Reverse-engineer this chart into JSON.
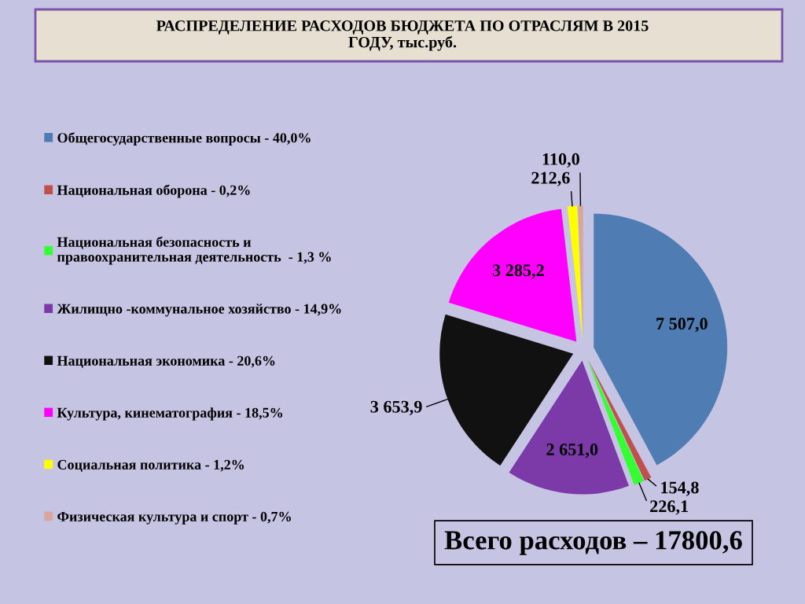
{
  "chart_data": {
    "type": "pie",
    "title": "РАСПРЕДЕЛЕНИЕ РАСХОДОВ БЮДЖЕТА ПО ОТРАСЛЯМ В 2015\nГОДУ, тыс.руб.",
    "categories": [
      "Общегосударственные вопросы - 40,0%",
      "Национальная оборона - 0,2%",
      "Национальная безопасность и\nправоохранительная деятельность  - 1,3 %",
      "Жилищно -коммунальное хозяйство - 14,9%",
      "Национальная экономика - 20,6%",
      "Культура, кинематография - 18,5%",
      "Социальная политика - 1,2%",
      "Физическая культура и спорт - 0,7%"
    ],
    "values": [
      7507.0,
      154.8,
      226.1,
      2651.0,
      3653.9,
      3285.2,
      212.6,
      110.0
    ],
    "colors": [
      "#4f7db3",
      "#c0504d",
      "#33ff33",
      "#7b3aa8",
      "#111111",
      "#ff00ff",
      "#ffff00",
      "#d9a59f"
    ],
    "value_labels": [
      "7 507,0",
      "154,8",
      "226,1",
      "2 651,0",
      "3 653,9",
      "3 285,2",
      "212,6",
      "110,0"
    ],
    "legend": "left",
    "annotations": [
      "Всего расходов – 17800,6"
    ]
  }
}
